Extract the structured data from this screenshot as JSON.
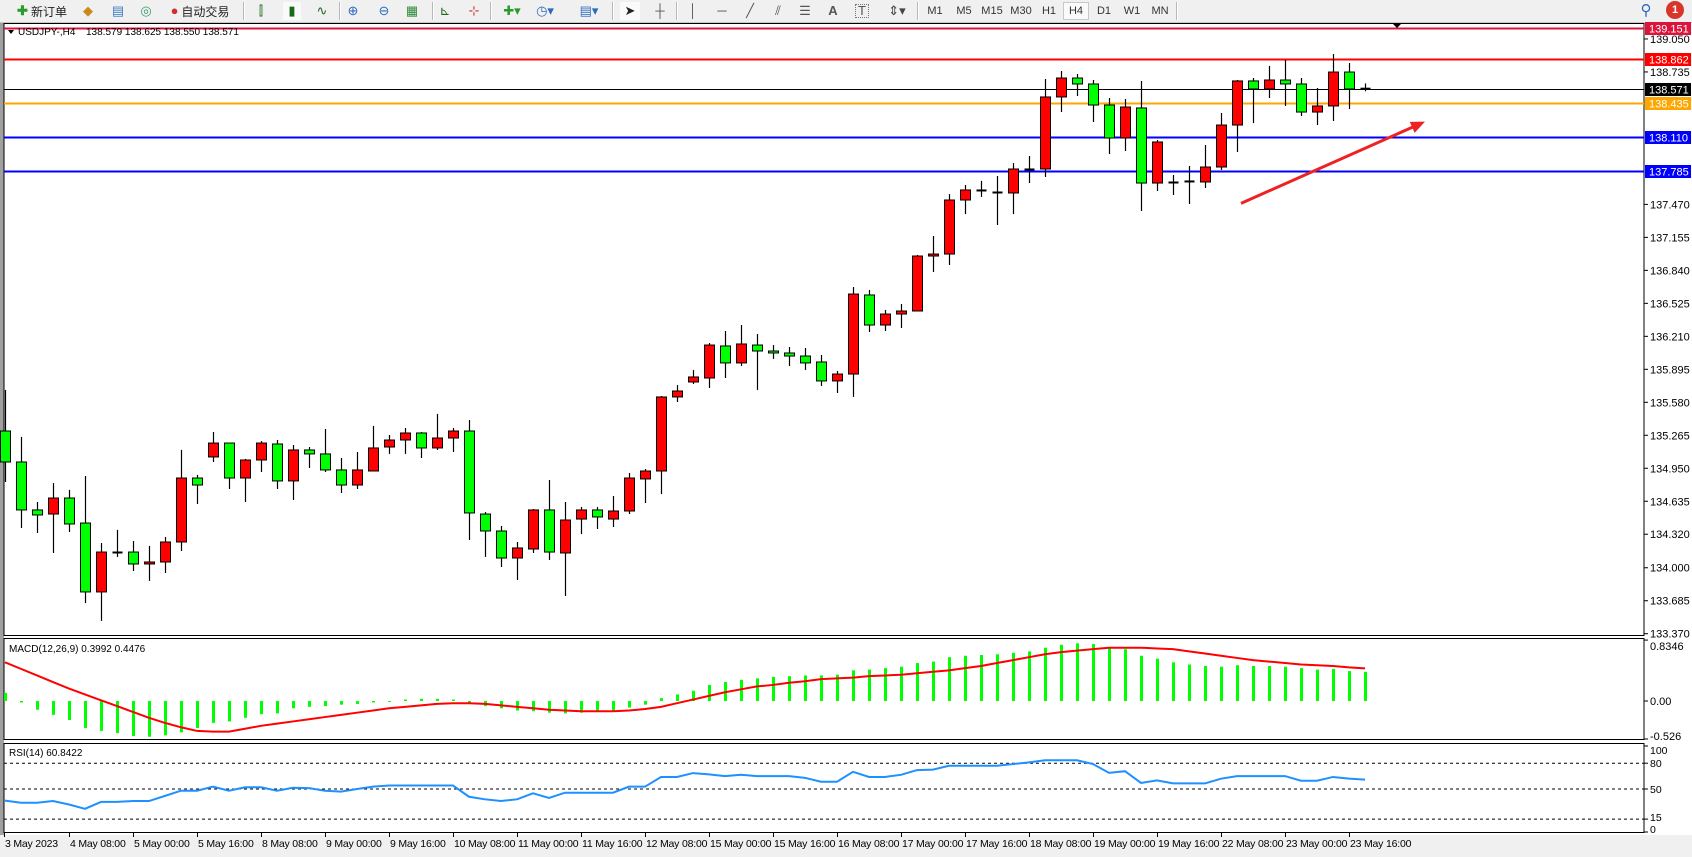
{
  "toolbar": {
    "new_order": "新订单",
    "auto_trading": "自动交易",
    "timeframes": [
      "M1",
      "M5",
      "M15",
      "M30",
      "H1",
      "H4",
      "D1",
      "W1",
      "MN"
    ],
    "active_timeframe": "H4",
    "notification_count": "1",
    "icons": [
      "new-order-icon",
      "market-watch-icon",
      "navigator-icon",
      "signals-icon",
      "auto-trading-icon",
      "bar-chart-icon",
      "candlestick-icon",
      "line-chart-icon",
      "zoom-in-icon",
      "zoom-out-icon",
      "tile-windows-icon",
      "autoscroll-icon",
      "chart-shift-icon",
      "indicators-icon",
      "periods-icon",
      "templates-icon",
      "cursor-icon",
      "crosshair-icon",
      "vertical-line-icon",
      "horizontal-line-icon",
      "trendline-icon",
      "equidistant-channel-icon",
      "fibonacci-icon",
      "text-icon",
      "text-label-icon",
      "arrows-icon",
      "search-icon",
      "notifications-icon"
    ]
  },
  "chart": {
    "symbol_tf": "USDJPY-,H4",
    "ohlc": "138.579 138.625 138.550 138.571"
  },
  "chart_data": {
    "type": "candlestick",
    "symbol": "USDJPY-",
    "timeframe": "H4",
    "up_color": "#ff0000",
    "down_color": "#00ff00",
    "ylim": [
      133.37,
      139.2
    ],
    "grid": false,
    "price_ticks": [
      "139.050",
      "138.735",
      "137.470",
      "137.155",
      "136.840",
      "136.525",
      "136.210",
      "135.895",
      "135.580",
      "135.265",
      "134.950",
      "134.635",
      "134.320",
      "134.000",
      "133.685",
      "133.370"
    ],
    "x_ticks": [
      "3 May 2023",
      "4 May 08:00",
      "5 May 00:00",
      "5 May 16:00",
      "8 May 08:00",
      "9 May 00:00",
      "9 May 16:00",
      "10 May 08:00",
      "11 May 00:00",
      "11 May 16:00",
      "12 May 08:00",
      "15 May 00:00",
      "15 May 16:00",
      "16 May 08:00",
      "17 May 00:00",
      "17 May 16:00",
      "18 May 08:00",
      "19 May 00:00",
      "19 May 16:00",
      "22 May 08:00",
      "23 May 00:00",
      "23 May 16:00"
    ],
    "ohlc": [
      [
        135.306,
        135.698,
        134.819,
        135.01
      ],
      [
        135.01,
        135.249,
        134.38,
        134.552
      ],
      [
        134.552,
        134.628,
        134.332,
        134.504
      ],
      [
        134.513,
        134.809,
        134.141,
        134.666
      ],
      [
        134.666,
        134.743,
        134.341,
        134.418
      ],
      [
        134.427,
        134.876,
        133.663,
        133.769
      ],
      [
        133.769,
        134.236,
        133.492,
        134.15
      ],
      [
        134.141,
        134.361,
        134.103,
        134.15
      ],
      [
        134.15,
        134.255,
        133.969,
        134.036
      ],
      [
        134.036,
        134.208,
        133.874,
        134.055
      ],
      [
        134.055,
        134.294,
        133.95,
        134.246
      ],
      [
        134.246,
        135.125,
        134.16,
        134.857
      ],
      [
        134.857,
        134.886,
        134.609,
        134.79
      ],
      [
        135.058,
        135.296,
        135.01,
        135.191
      ],
      [
        135.191,
        135.191,
        134.752,
        134.857
      ],
      [
        134.857,
        135.039,
        134.628,
        135.029
      ],
      [
        135.029,
        135.21,
        134.914,
        135.191
      ],
      [
        135.182,
        135.22,
        134.752,
        134.829
      ],
      [
        134.829,
        135.172,
        134.647,
        135.125
      ],
      [
        135.125,
        135.153,
        134.953,
        135.087
      ],
      [
        135.087,
        135.325,
        134.914,
        134.934
      ],
      [
        134.934,
        135.048,
        134.714,
        134.79
      ],
      [
        134.79,
        135.105,
        134.752,
        134.934
      ],
      [
        134.924,
        135.354,
        134.924,
        135.144
      ],
      [
        135.153,
        135.268,
        135.087,
        135.22
      ],
      [
        135.22,
        135.335,
        135.087,
        135.287
      ],
      [
        135.287,
        135.296,
        135.048,
        135.144
      ],
      [
        135.144,
        135.469,
        135.125,
        135.239
      ],
      [
        135.239,
        135.335,
        135.105,
        135.306
      ],
      [
        135.306,
        135.411,
        134.265,
        134.523
      ],
      [
        134.513,
        134.532,
        134.103,
        134.351
      ],
      [
        134.351,
        134.399,
        134.007,
        134.093
      ],
      [
        134.093,
        134.246,
        133.883,
        134.189
      ],
      [
        134.179,
        134.561,
        134.141,
        134.552
      ],
      [
        134.552,
        134.838,
        134.074,
        134.15
      ],
      [
        134.141,
        134.628,
        133.73,
        134.456
      ],
      [
        134.465,
        134.58,
        134.322,
        134.552
      ],
      [
        134.552,
        134.58,
        134.37,
        134.485
      ],
      [
        134.465,
        134.685,
        134.389,
        134.542
      ],
      [
        134.542,
        134.905,
        134.513,
        134.857
      ],
      [
        134.848,
        134.943,
        134.618,
        134.924
      ],
      [
        134.924,
        135.64,
        134.704,
        135.631
      ],
      [
        135.631,
        135.745,
        135.583,
        135.688
      ],
      [
        135.774,
        135.888,
        135.755,
        135.822
      ],
      [
        135.812,
        136.146,
        135.717,
        136.127
      ],
      [
        136.118,
        136.261,
        135.812,
        135.956
      ],
      [
        135.956,
        136.318,
        135.927,
        136.137
      ],
      [
        136.127,
        136.232,
        135.698,
        136.07
      ],
      [
        136.07,
        136.127,
        135.994,
        136.051
      ],
      [
        136.051,
        136.108,
        135.927,
        136.022
      ],
      [
        136.022,
        136.099,
        135.889,
        135.956
      ],
      [
        135.965,
        136.032,
        135.736,
        135.784
      ],
      [
        135.784,
        135.879,
        135.669,
        135.85
      ],
      [
        135.85,
        136.681,
        135.631,
        136.614
      ],
      [
        136.605,
        136.653,
        136.251,
        136.318
      ],
      [
        136.318,
        136.462,
        136.261,
        136.423
      ],
      [
        136.423,
        136.519,
        136.29,
        136.452
      ],
      [
        136.452,
        136.987,
        136.452,
        136.977
      ],
      [
        136.977,
        137.168,
        136.824,
        136.996
      ],
      [
        136.996,
        137.569,
        136.891,
        137.512
      ],
      [
        137.512,
        137.655,
        137.378,
        137.608
      ],
      [
        137.598,
        137.694,
        137.541,
        137.608
      ],
      [
        137.588,
        137.741,
        137.273,
        137.579
      ],
      [
        137.579,
        137.865,
        137.378,
        137.808
      ],
      [
        137.799,
        137.932,
        137.674,
        137.808
      ],
      [
        137.808,
        138.668,
        137.732,
        138.496
      ],
      [
        138.496,
        138.744,
        138.352,
        138.677
      ],
      [
        138.677,
        138.715,
        138.505,
        138.62
      ],
      [
        138.62,
        138.658,
        138.257,
        138.419
      ],
      [
        138.419,
        138.486,
        137.951,
        138.104
      ],
      [
        138.104,
        138.477,
        137.98,
        138.4
      ],
      [
        138.391,
        138.649,
        137.407,
        137.674
      ],
      [
        137.674,
        138.085,
        137.598,
        138.066
      ],
      [
        137.674,
        137.751,
        137.56,
        137.684
      ],
      [
        137.684,
        137.837,
        137.474,
        137.694
      ],
      [
        137.684,
        138.037,
        137.627,
        137.827
      ],
      [
        137.827,
        138.343,
        137.799,
        138.228
      ],
      [
        138.228,
        138.658,
        137.97,
        138.649
      ],
      [
        138.649,
        138.677,
        138.247,
        138.572
      ],
      [
        138.572,
        138.792,
        138.486,
        138.658
      ],
      [
        138.658,
        138.849,
        138.41,
        138.62
      ],
      [
        138.62,
        138.677,
        138.314,
        138.352
      ],
      [
        138.352,
        138.582,
        138.228,
        138.41
      ],
      [
        138.41,
        138.906,
        138.266,
        138.734
      ],
      [
        138.734,
        138.82,
        138.381,
        138.572
      ],
      [
        138.579,
        138.625,
        138.55,
        138.571
      ]
    ],
    "hlines": [
      {
        "price": 139.151,
        "label": "139.151",
        "color": "#dc143c"
      },
      {
        "price": 138.862,
        "label": "138.862",
        "color": "#ff0000"
      },
      {
        "price": 138.571,
        "label": "138.571",
        "color": "#000000"
      },
      {
        "price": 138.435,
        "label": "138.435",
        "color": "#ffa500"
      },
      {
        "price": 138.11,
        "label": "138.110",
        "color": "#0000ff"
      },
      {
        "price": 137.785,
        "label": "137.785",
        "color": "#0000ff"
      }
    ],
    "trend_arrow": {
      "color": "#ee2222",
      "start": {
        "time": "22 May 12:00",
        "price": 137.48
      },
      "end": {
        "time": "24 May 12:00",
        "price": 138.26
      }
    },
    "macd": {
      "label": "MACD(12,26,9) 0.3992 0.4476",
      "ticks": [
        "0.8346",
        "0.00",
        "-0.526"
      ],
      "ylim": [
        -0.526,
        0.8346
      ],
      "histogram_color": "#00ff00",
      "signal_color": "#ff0000",
      "histogram": [
        0.11,
        -0.02,
        -0.12,
        -0.19,
        -0.26,
        -0.37,
        -0.41,
        -0.44,
        -0.48,
        -0.49,
        -0.47,
        -0.43,
        -0.37,
        -0.3,
        -0.28,
        -0.23,
        -0.18,
        -0.17,
        -0.1,
        -0.08,
        -0.07,
        -0.05,
        -0.04,
        -0.02,
        0.0,
        0.02,
        0.03,
        0.03,
        0.02,
        -0.04,
        -0.07,
        -0.1,
        -0.13,
        -0.14,
        -0.16,
        -0.17,
        -0.16,
        -0.15,
        -0.13,
        -0.09,
        -0.05,
        0.04,
        0.09,
        0.14,
        0.22,
        0.26,
        0.29,
        0.31,
        0.33,
        0.34,
        0.35,
        0.35,
        0.36,
        0.42,
        0.43,
        0.45,
        0.47,
        0.52,
        0.54,
        0.6,
        0.62,
        0.63,
        0.64,
        0.66,
        0.68,
        0.73,
        0.77,
        0.79,
        0.78,
        0.74,
        0.71,
        0.62,
        0.58,
        0.53,
        0.5,
        0.48,
        0.47,
        0.49,
        0.48,
        0.48,
        0.47,
        0.45,
        0.43,
        0.44,
        0.41,
        0.3992
      ],
      "signal": [
        0.53,
        0.44,
        0.35,
        0.26,
        0.17,
        0.09,
        0.01,
        -0.07,
        -0.15,
        -0.23,
        -0.3,
        -0.36,
        -0.41,
        -0.42,
        -0.42,
        -0.38,
        -0.34,
        -0.31,
        -0.28,
        -0.25,
        -0.22,
        -0.19,
        -0.16,
        -0.13,
        -0.1,
        -0.08,
        -0.06,
        -0.04,
        -0.03,
        -0.03,
        -0.04,
        -0.06,
        -0.08,
        -0.1,
        -0.12,
        -0.13,
        -0.14,
        -0.14,
        -0.14,
        -0.13,
        -0.11,
        -0.08,
        -0.03,
        0.02,
        0.07,
        0.12,
        0.16,
        0.2,
        0.22,
        0.25,
        0.27,
        0.3,
        0.31,
        0.32,
        0.34,
        0.35,
        0.36,
        0.38,
        0.4,
        0.42,
        0.45,
        0.48,
        0.52,
        0.56,
        0.6,
        0.64,
        0.67,
        0.69,
        0.71,
        0.73,
        0.73,
        0.73,
        0.72,
        0.71,
        0.68,
        0.65,
        0.62,
        0.59,
        0.56,
        0.54,
        0.52,
        0.5,
        0.49,
        0.48,
        0.46,
        0.4476
      ]
    },
    "rsi": {
      "label": "RSI(14) 60.8422",
      "ticks": [
        "100",
        "80",
        "50",
        "15",
        "0"
      ],
      "levels": [
        80,
        50,
        15
      ],
      "ylim": [
        0,
        100
      ],
      "color": "#1e90ff",
      "values": [
        36.5,
        34,
        34,
        36,
        32,
        27,
        35,
        35,
        36,
        36,
        42,
        48,
        48,
        52.7,
        48,
        52,
        52,
        48,
        51.5,
        51,
        48,
        47,
        50,
        52.7,
        54,
        54,
        54,
        54,
        54,
        41,
        38,
        36,
        38,
        45,
        39.6,
        45.7,
        45.7,
        45.7,
        45.7,
        52.7,
        52.7,
        64,
        64,
        68.5,
        67,
        65,
        66.5,
        65,
        65,
        65,
        63,
        58.5,
        58.5,
        70,
        64,
        64,
        66.5,
        72,
        72.5,
        77,
        77,
        77,
        77,
        79,
        81,
        83.4,
        83.4,
        83.4,
        79,
        68.8,
        70.7,
        57,
        60,
        56.5,
        56.5,
        56.5,
        62,
        65,
        65,
        65,
        65,
        59.6,
        59.6,
        64,
        62,
        60.84
      ]
    }
  }
}
